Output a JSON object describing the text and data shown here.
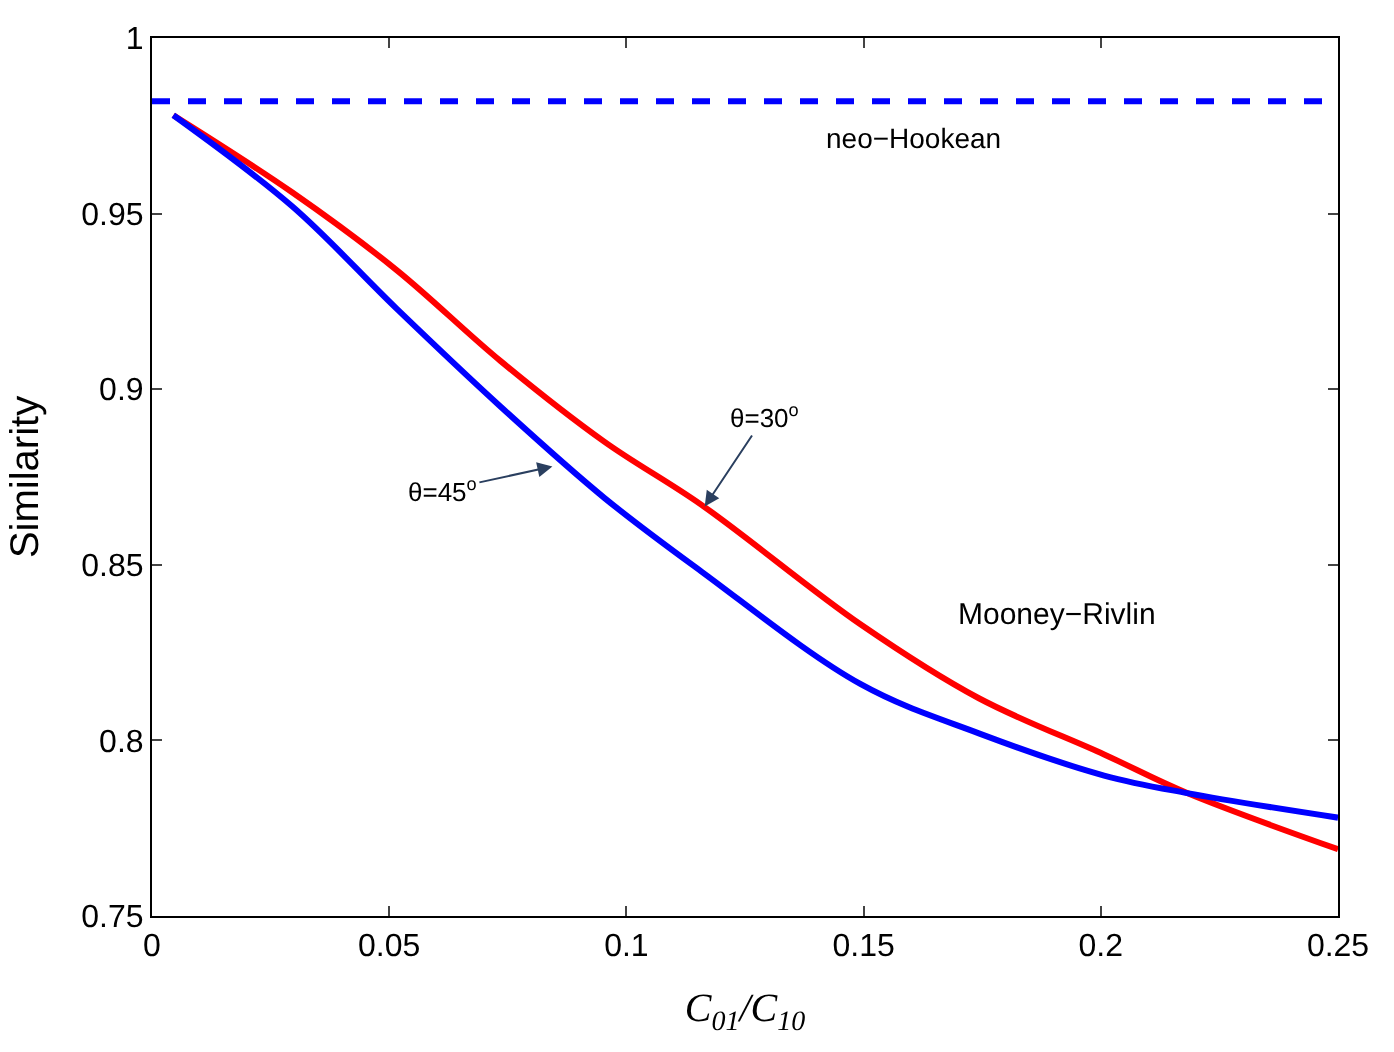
{
  "chart_data": {
    "type": "line",
    "xlabel": "C$_{01}$/C$_{10}$",
    "ylabel": "Similarity",
    "xlim": [
      0,
      0.25
    ],
    "xticks": [
      0,
      0.05,
      0.1,
      0.15,
      0.2,
      0.25
    ],
    "ylim": [
      0.75,
      1
    ],
    "yticks": [
      0.75,
      0.8,
      0.85,
      0.9,
      0.95,
      1
    ],
    "marker": "none",
    "line_style": "solid",
    "series": [
      {
        "color": "#ff0000",
        "x": [
          0.0045,
          0.0296,
          0.0515,
          0.0735,
          0.0954,
          0.1159,
          0.1494,
          0.1743,
          0.2007,
          0.2182,
          0.25
        ],
        "values": [
          0.978,
          0.956,
          0.934,
          0.908,
          0.885,
          0.867,
          0.833,
          0.812,
          0.796,
          0.785,
          0.769
        ]
      },
      {
        "color": "#0000ff",
        "x": [
          0.0045,
          0.0296,
          0.0515,
          0.0735,
          0.0954,
          0.1159,
          0.1494,
          0.1743,
          0.2007,
          0.2182,
          0.25
        ],
        "values": [
          0.978,
          0.952,
          0.923,
          0.895,
          0.869,
          0.848,
          0.816,
          0.802,
          0.79,
          0.785,
          0.778
        ]
      }
    ],
    "ref_lines": [
      {
        "axis": "y",
        "value": 0.982,
        "label": "neo−Hookean",
        "color": "#0000ff",
        "line_style": "dashed"
      }
    ],
    "annotations": [
      {
        "text": "θ=30$^{o}$",
        "x": 0.1165,
        "y": 0.8666
      },
      {
        "text": "θ=45$^{o}$",
        "x": 0.0844,
        "y": 0.878
      },
      "Mooney−Rivlin"
    ]
  }
}
